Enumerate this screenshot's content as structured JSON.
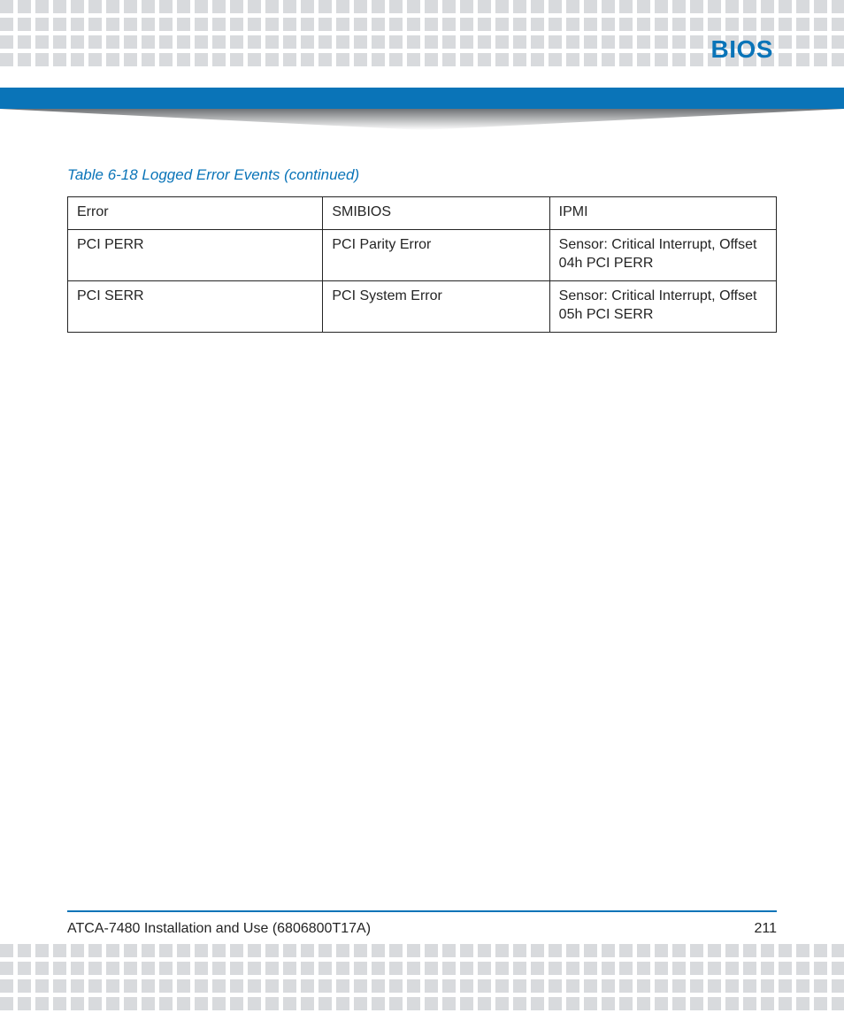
{
  "colors": {
    "brand_blue": "#0a74b8",
    "dot_gray": "#d8dadd",
    "text": "#242424",
    "rule": "#0a74b8",
    "shadow_dark": "#6f7275",
    "shadow_light": "#ffffff"
  },
  "header": {
    "section_title": "BIOS"
  },
  "table": {
    "caption": "Table 6-18 Logged Error Events (continued)",
    "caption_color": "#0a74b8",
    "col_widths_pct": [
      36,
      32,
      32
    ],
    "columns": [
      "Error",
      "SMIBIOS",
      "IPMI"
    ],
    "rows": [
      [
        "PCI PERR",
        "PCI Parity Error",
        "Sensor: Critical Interrupt, Offset 04h PCI PERR"
      ],
      [
        "PCI SERR",
        "PCI System Error",
        "Sensor: Critical Interrupt, Offset 05h PCI SERR"
      ]
    ]
  },
  "footer": {
    "doc_title": "ATCA-7480 Installation and Use (6806800T17A)",
    "page_number": "211"
  },
  "decor": {
    "dot_size": 15,
    "dot_gap": 20,
    "dot_rows": 4,
    "band_width": 954
  }
}
